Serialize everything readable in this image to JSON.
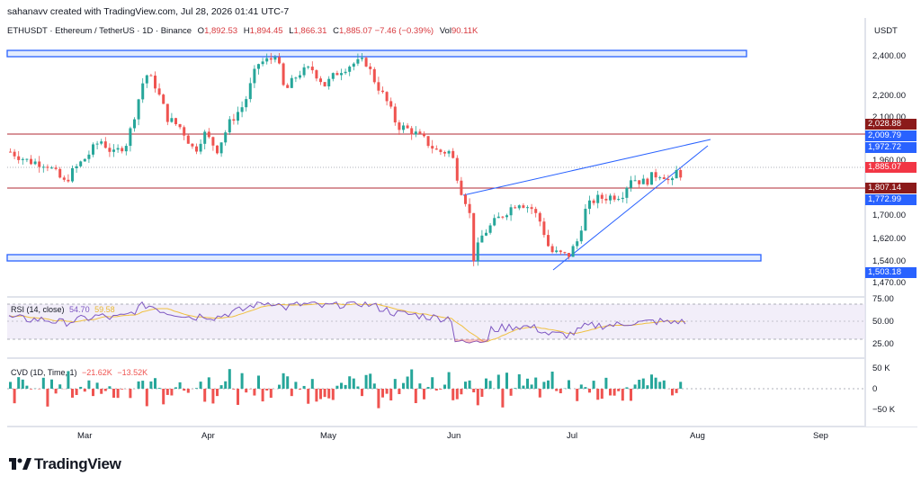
{
  "header": {
    "publisher": "sahanavv created with TradingView.com, Jul 28, 2026 01:41 UTC-7"
  },
  "symbol": {
    "name": "ETHUSDT · Ethereum / TetherUS · 1D · Binance",
    "open_label": "O",
    "open": "1,892.53",
    "high_label": "H",
    "high": "1,894.45",
    "low_label": "L",
    "low": "1,866.31",
    "close_label": "C",
    "close": "1,885.07",
    "change": "−7.46 (−0.39%)",
    "vol_label": "Vol",
    "vol": "90.11K"
  },
  "price_axis": {
    "currency": "USDT",
    "ticks": [
      "2,400.00",
      "2,200.00",
      "2,100.00",
      "1,960.00",
      "1,700.00",
      "1,620.00",
      "1,540.00",
      "1,470.00"
    ]
  },
  "price_tags": [
    {
      "text": "2,028.88",
      "color": "#8b1a1a"
    },
    {
      "text": "2,009.79",
      "color": "#2962ff"
    },
    {
      "text": "1,972.72",
      "color": "#2962ff"
    },
    {
      "text": "1,885.07",
      "color": "#f23645"
    },
    {
      "text": "1,807.14",
      "color": "#8b1a1a"
    },
    {
      "text": "1,772.99",
      "color": "#2962ff"
    },
    {
      "text": "1,503.18",
      "color": "#2962ff"
    }
  ],
  "rsi": {
    "title": "RSI (14, close)",
    "value1": "54.70",
    "value2": "59.58",
    "ticks": [
      "75.00",
      "50.00",
      "25.00"
    ]
  },
  "cvd": {
    "title": "CVD (1D, Time, 1)",
    "value1": "−21.62K",
    "value2": "−13.52K",
    "ticks": [
      "50 K",
      "0",
      "−50 K"
    ]
  },
  "months": [
    "Mar",
    "Apr",
    "May",
    "Jun",
    "Jul",
    "Aug",
    "Sep"
  ],
  "brand": {
    "name": "TradingView"
  },
  "colors": {
    "up": "#26a69a",
    "down": "#ef5350",
    "rsi_line": "#7e57c2",
    "rsi_ma": "#f0c040",
    "trendline": "#2962ff",
    "resistance": "#b22833"
  }
}
